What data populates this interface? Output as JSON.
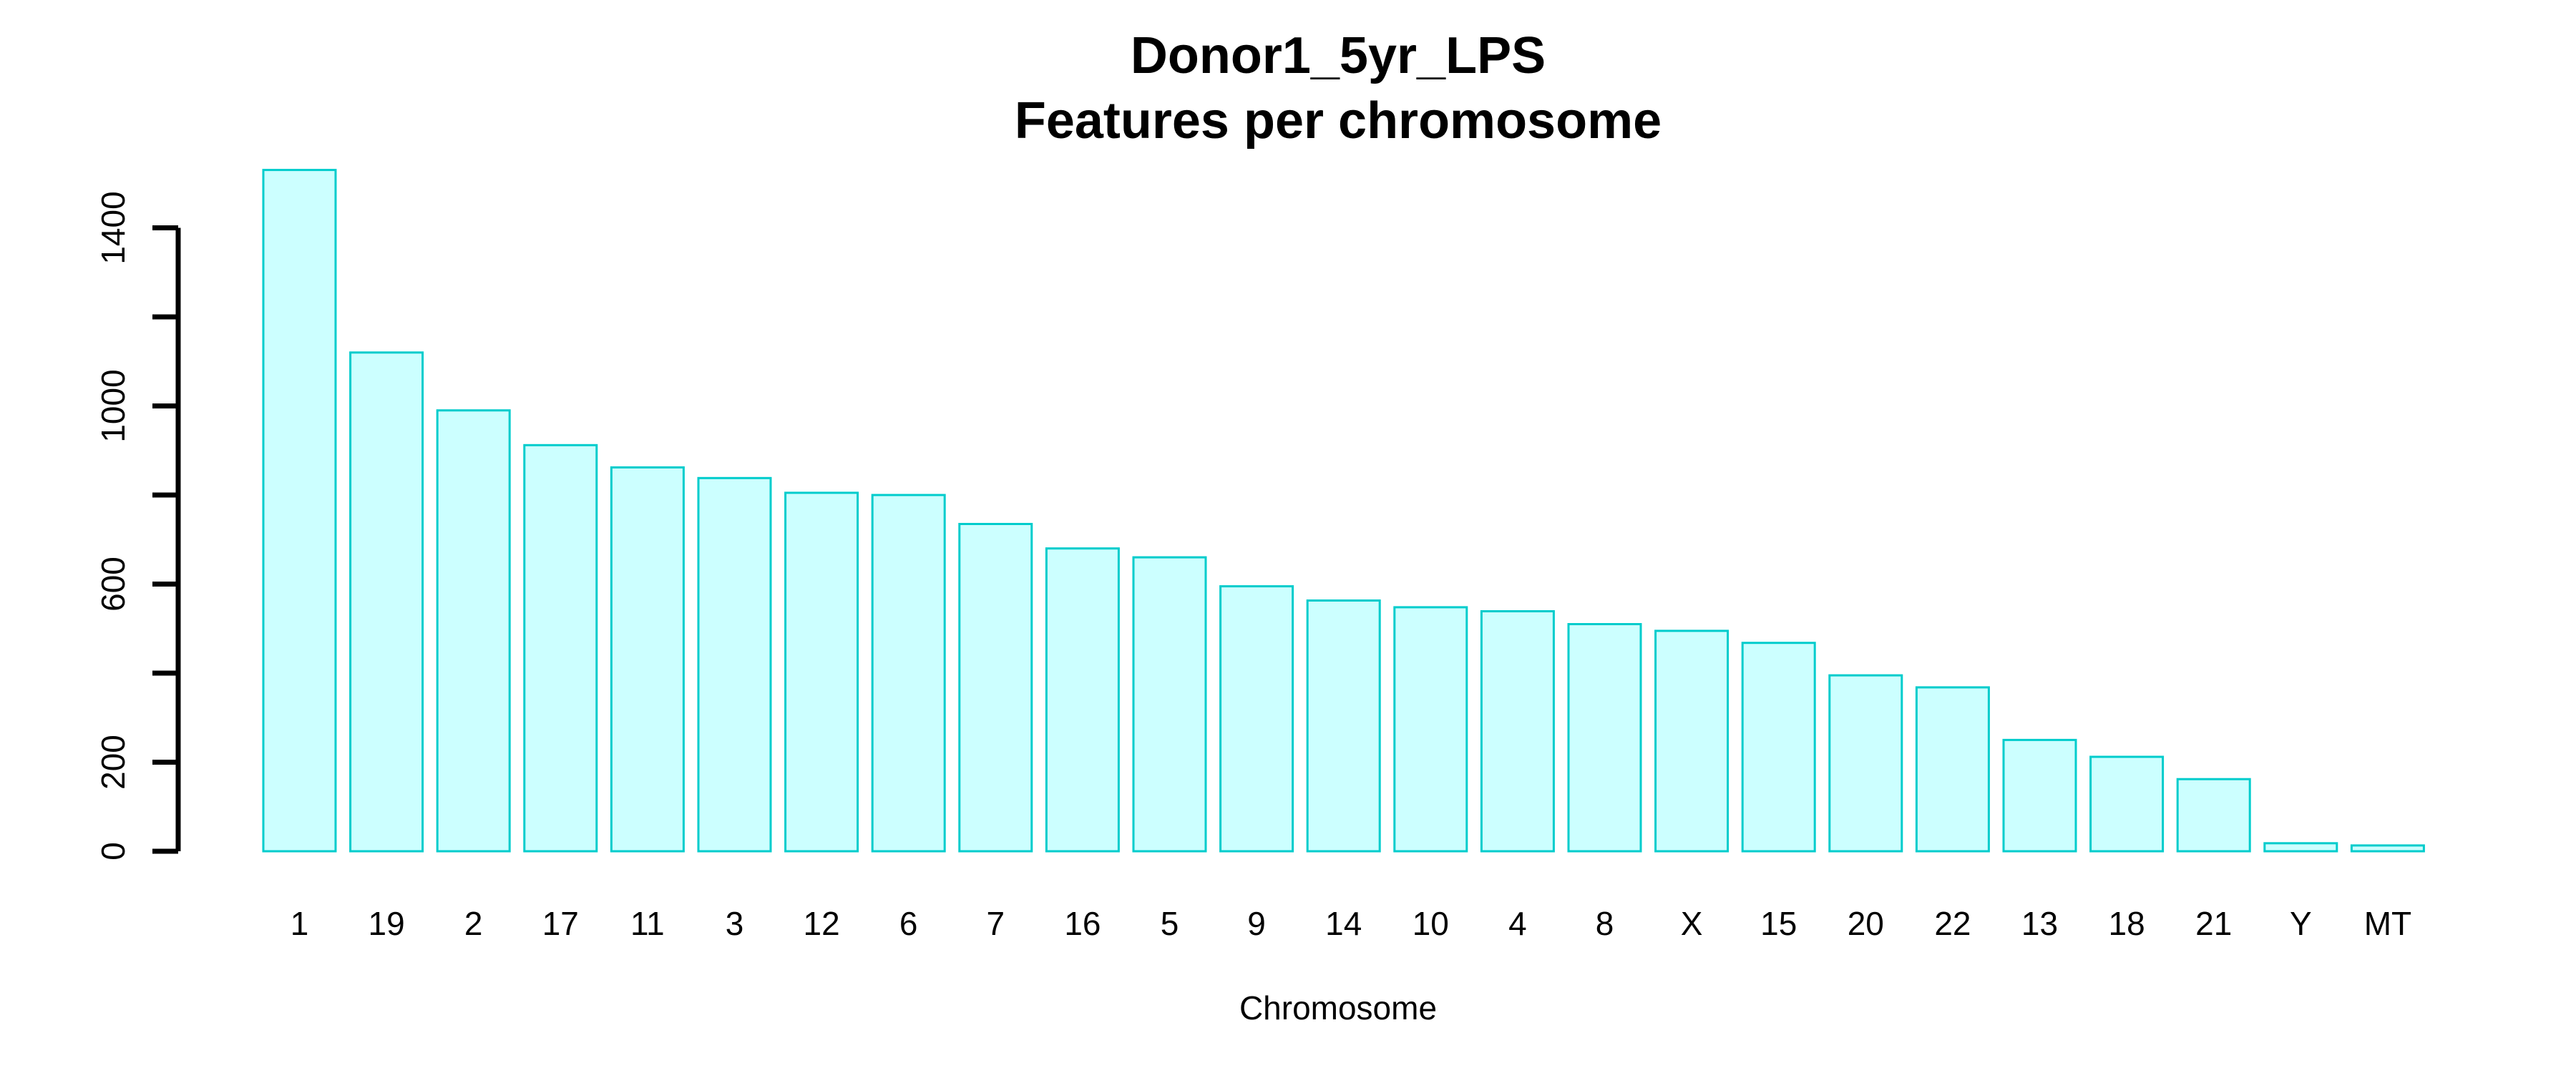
{
  "chart_data": {
    "type": "bar",
    "title": "Donor1_5yr_LPS",
    "subtitle": "Features per chromosome",
    "xlabel": "Chromosome",
    "ylabel": "",
    "ylim": [
      0,
      1550
    ],
    "yticks": [
      0,
      200,
      400,
      600,
      800,
      1000,
      1200,
      1400
    ],
    "ytick_labels": [
      "0",
      "200",
      "",
      "600",
      "",
      "1000",
      "",
      "1400"
    ],
    "grid": false,
    "legend": "none",
    "colors": {
      "bar_fill": "#ccffff",
      "bar_stroke": "#00cccc",
      "axis": "#000000"
    },
    "categories": [
      "1",
      "19",
      "2",
      "17",
      "11",
      "3",
      "12",
      "6",
      "7",
      "16",
      "5",
      "9",
      "14",
      "10",
      "4",
      "8",
      "X",
      "15",
      "20",
      "22",
      "13",
      "18",
      "21",
      "Y",
      "MT"
    ],
    "values": [
      1530,
      1120,
      990,
      912,
      862,
      838,
      805,
      800,
      735,
      680,
      660,
      595,
      563,
      548,
      539,
      510,
      495,
      468,
      395,
      368,
      250,
      212,
      162,
      18,
      13
    ]
  }
}
